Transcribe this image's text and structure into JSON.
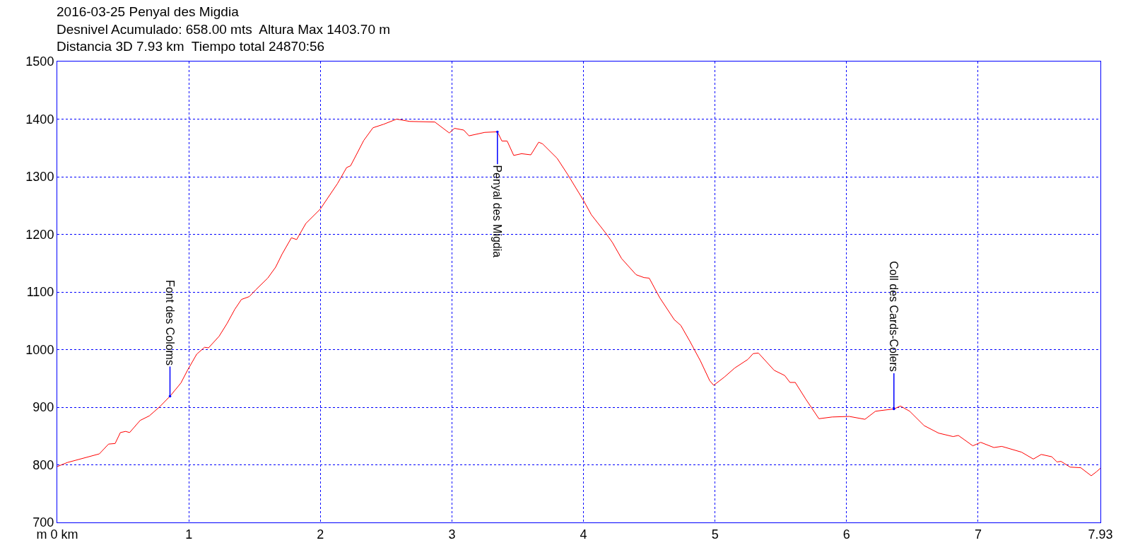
{
  "chart_data": {
    "type": "line",
    "title": "2016-03-25 Penyal des Migdia\nDesnivel Acumulado: 658.00 mts  Altura Max 1403.70 m\nDistancia 3D 7.93 km  Tiempo total 24870:56",
    "x": [
      0,
      0.077,
      0.32,
      0.39,
      0.44,
      0.48,
      0.52,
      0.55,
      0.63,
      0.7,
      0.78,
      0.857,
      0.94,
      0.99,
      1.06,
      1.12,
      1.15,
      1.23,
      1.29,
      1.35,
      1.4,
      1.46,
      1.51,
      1.6,
      1.66,
      1.71,
      1.78,
      1.82,
      1.89,
      2.0,
      2.13,
      2.2,
      2.23,
      2.33,
      2.4,
      2.48,
      2.58,
      2.68,
      2.87,
      2.98,
      3.02,
      3.09,
      3.13,
      3.25,
      3.346,
      3.38,
      3.42,
      3.47,
      3.53,
      3.6,
      3.66,
      3.69,
      3.8,
      3.88,
      4.0,
      4.06,
      4.17,
      4.22,
      4.29,
      4.4,
      4.46,
      4.5,
      4.58,
      4.69,
      4.74,
      4.81,
      4.89,
      4.96,
      4.99,
      5.07,
      5.15,
      5.25,
      5.29,
      5.33,
      5.45,
      5.53,
      5.57,
      5.61,
      5.69,
      5.79,
      5.89,
      6.02,
      6.14,
      6.22,
      6.36,
      6.41,
      6.48,
      6.59,
      6.7,
      6.81,
      6.85,
      6.96,
      7.02,
      7.12,
      7.18,
      7.33,
      7.42,
      7.48,
      7.56,
      7.6,
      7.63,
      7.7,
      7.78,
      7.86,
      7.9,
      7.93
    ],
    "series": [
      {
        "color": "#ff0000",
        "values": [
          797,
          804,
          819,
          836,
          837,
          856,
          858,
          856,
          877,
          885,
          901,
          919,
          942,
          964,
          992,
          1004,
          1003,
          1023,
          1045,
          1070,
          1087,
          1092,
          1104,
          1124,
          1143,
          1166,
          1194,
          1191,
          1219,
          1244,
          1288,
          1316,
          1319,
          1363,
          1385,
          1391,
          1400,
          1396,
          1395,
          1376,
          1384,
          1381,
          1371,
          1377,
          1378,
          1362,
          1362,
          1337,
          1340,
          1338,
          1360,
          1357,
          1332,
          1304,
          1259,
          1234,
          1202,
          1186,
          1158,
          1130,
          1125,
          1124,
          1090,
          1052,
          1042,
          1014,
          980,
          946,
          938,
          952,
          968,
          983,
          993,
          994,
          964,
          955,
          943,
          943,
          914,
          880,
          883,
          884,
          879,
          893,
          897,
          902,
          893,
          868,
          855,
          849,
          851,
          833,
          839,
          830,
          832,
          822,
          810,
          818,
          814,
          805,
          806,
          796,
          795,
          781,
          788,
          794
        ]
      }
    ],
    "xlim": [
      0,
      7.93
    ],
    "xticks": [
      {
        "value": 0,
        "label": "m 0 km"
      },
      1,
      2,
      3,
      4,
      5,
      6,
      7,
      7.93
    ],
    "ylim": [
      700,
      1500
    ],
    "yticks": [
      700,
      800,
      900,
      1000,
      1100,
      1200,
      1300,
      1400,
      1500
    ],
    "grid": true,
    "marker": "none",
    "line_style": "solid",
    "annotations": [
      {
        "text": "Font des Coloms",
        "x": 0.857,
        "y": 919
      },
      {
        "text": "Penyal des Migdia",
        "x": 3.346,
        "y": 1378
      },
      {
        "text": "Coll des Cards-Colers",
        "x": 6.36,
        "y": 897
      }
    ]
  }
}
